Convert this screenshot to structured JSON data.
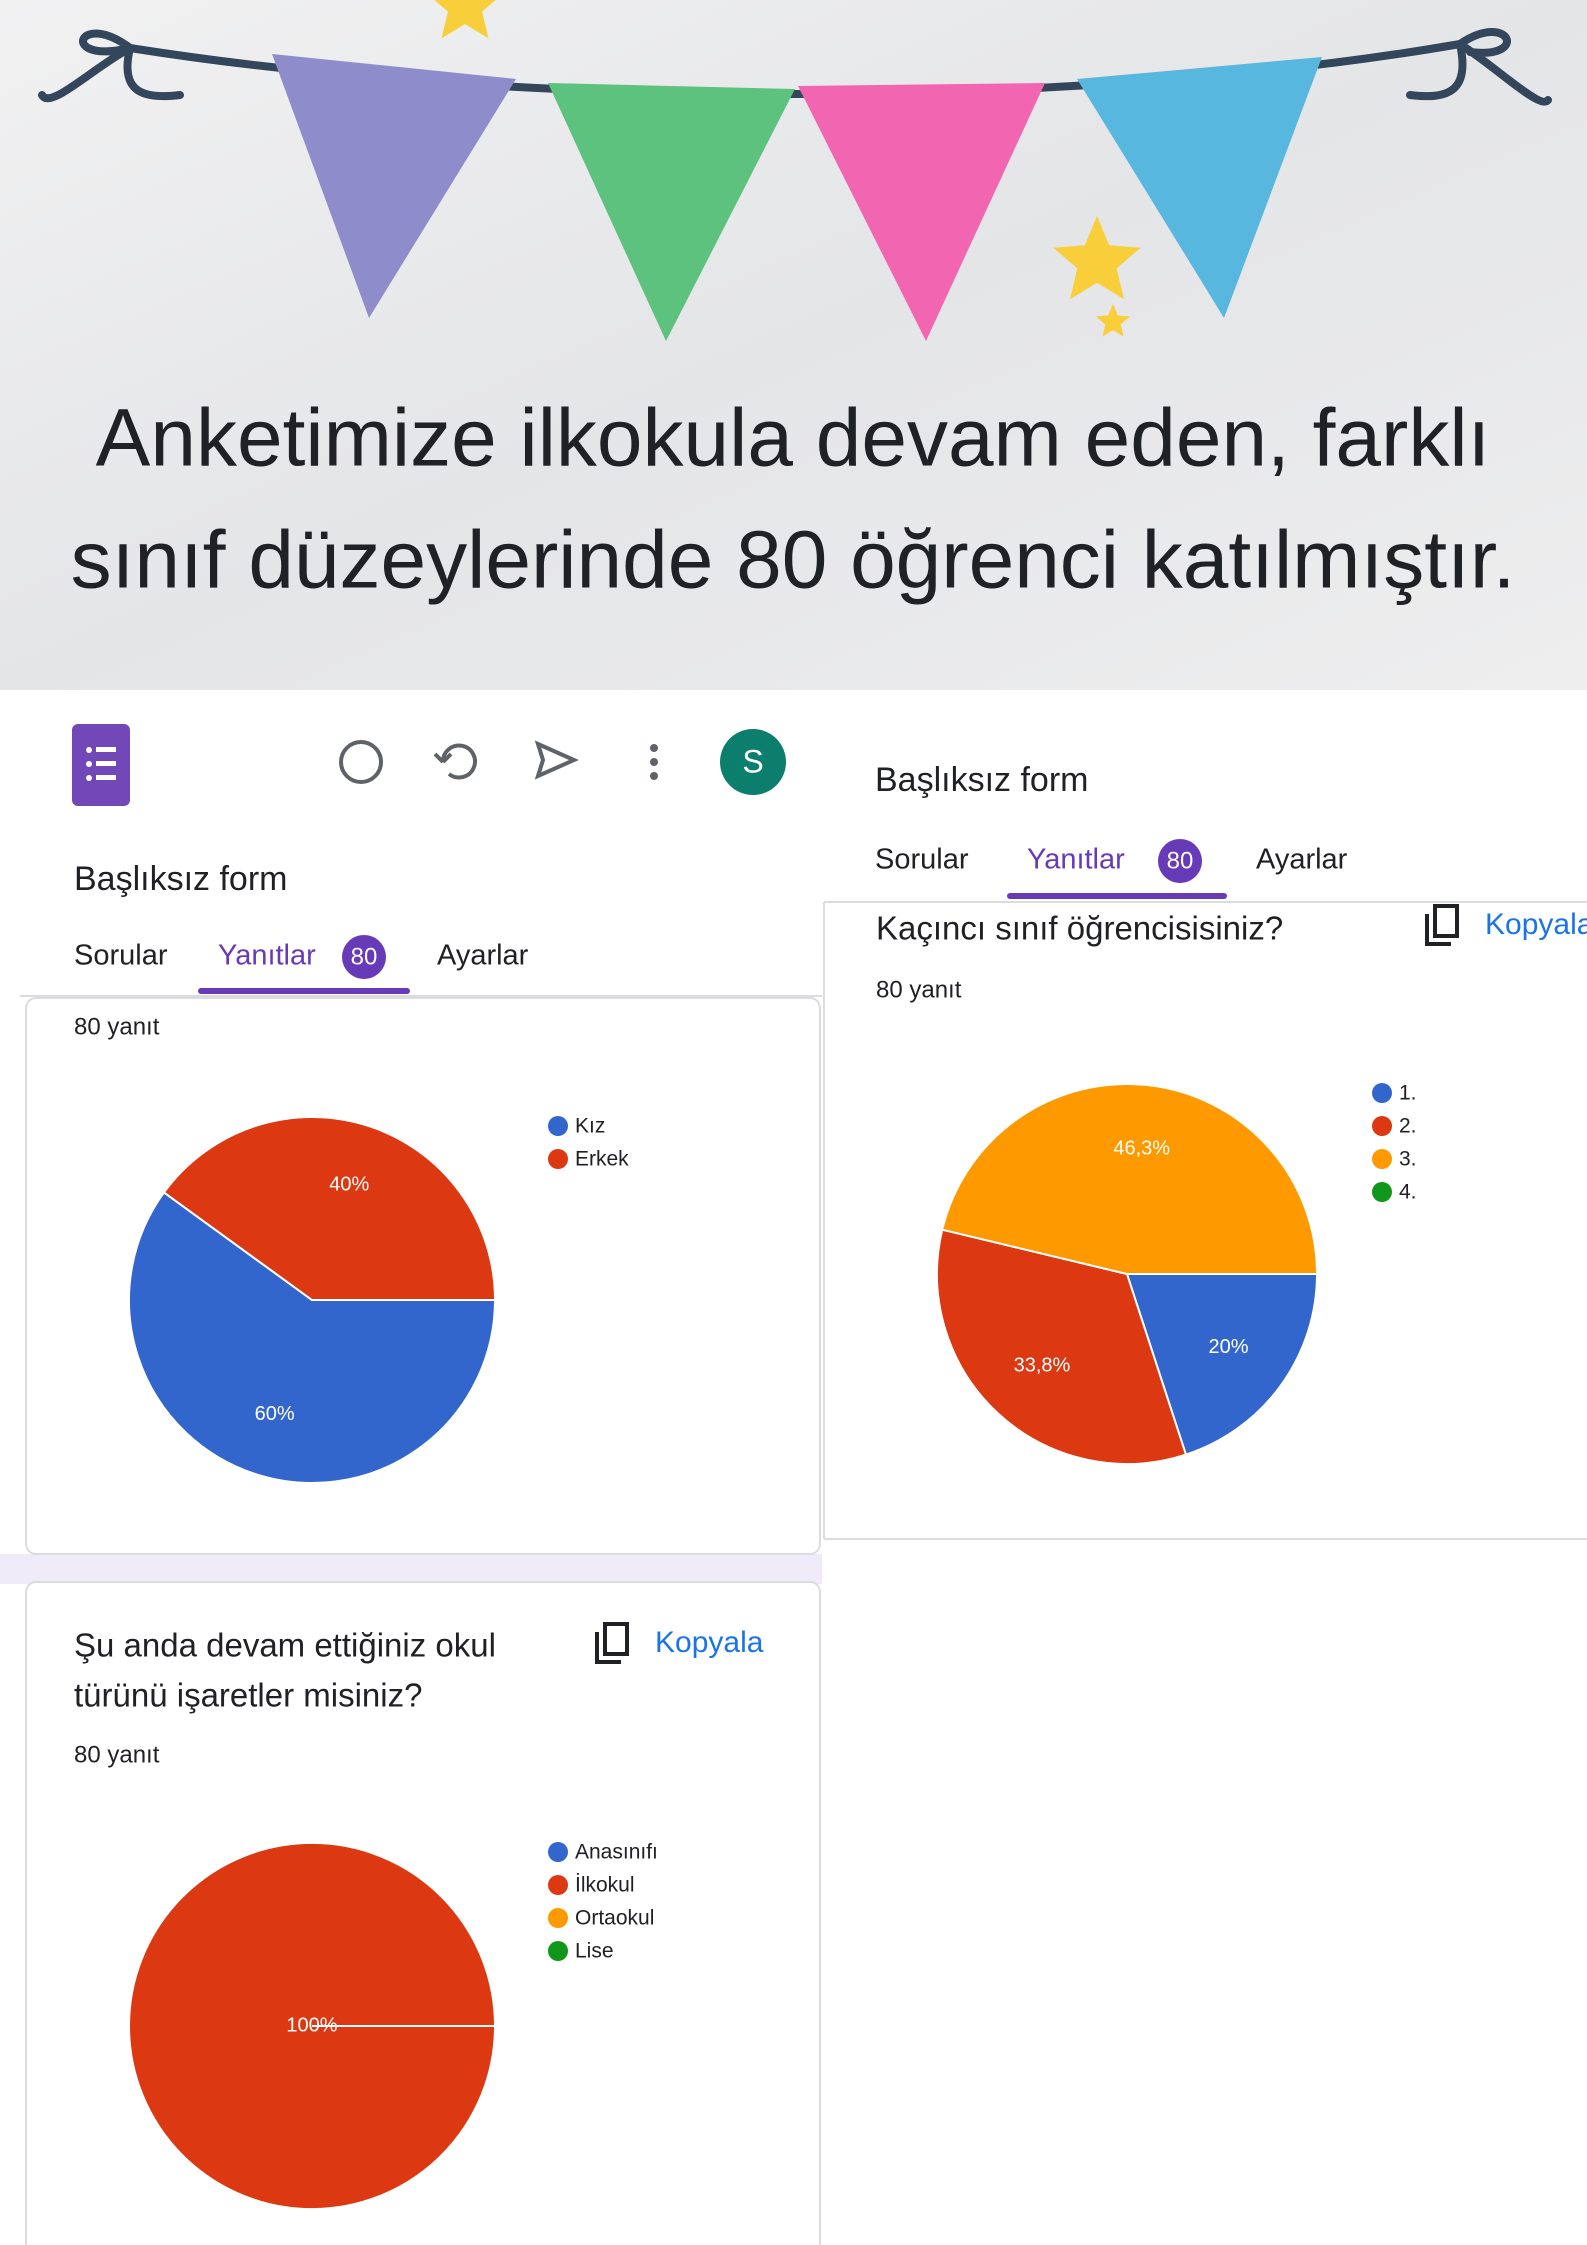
{
  "banner": {
    "lines": [
      "Anketimize ilkokula devam eden, farklı",
      "sınıf düzeylerinde 80 öğrenci katılmıştır."
    ]
  },
  "left_form": {
    "avatar": "S",
    "title": "Başlıksız form",
    "tabs": [
      "Sorular",
      "Yanıtlar",
      "Ayarlar"
    ],
    "badge": "80"
  },
  "right_form": {
    "title": "Başlıksız form",
    "tabs": [
      "Sorular",
      "Yanıtlar",
      "Ayarlar"
    ],
    "badge": "80"
  },
  "chart_data": [
    {
      "type": "pie",
      "subtitle": "80 yanıt",
      "categories": [
        "Kız",
        "Erkek"
      ],
      "values": [
        60,
        40
      ],
      "value_labels": [
        "60%",
        "40%"
      ],
      "colors": [
        "#3366cc",
        "#dc3912"
      ]
    },
    {
      "type": "pie",
      "title": [
        "Kaçıncı sınıf öğrencisisiniz?"
      ],
      "copy_button": "Kopyala",
      "subtitle": "80 yanıt",
      "categories": [
        "1.",
        "2.",
        "3.",
        "4."
      ],
      "values": [
        20,
        33.8,
        46.3,
        0
      ],
      "value_labels": [
        "20%",
        "33,8%",
        "46,3%",
        null
      ],
      "colors": [
        "#3366cc",
        "#dc3912",
        "#ff9900",
        "#109618"
      ]
    },
    {
      "type": "pie",
      "title": [
        "Şu anda devam ettiğiniz okul",
        "türünü işaretler misiniz?"
      ],
      "copy_button": "Kopyala",
      "subtitle": "80 yanıt",
      "categories": [
        "Anasınıfı",
        "İlkokul",
        "Ortaokul",
        "Lise"
      ],
      "values": [
        0,
        100,
        0,
        0
      ],
      "value_labels": [
        null,
        "100%",
        null,
        null
      ],
      "colors": [
        "#3366cc",
        "#dc3912",
        "#ff9900",
        "#109618"
      ]
    }
  ]
}
